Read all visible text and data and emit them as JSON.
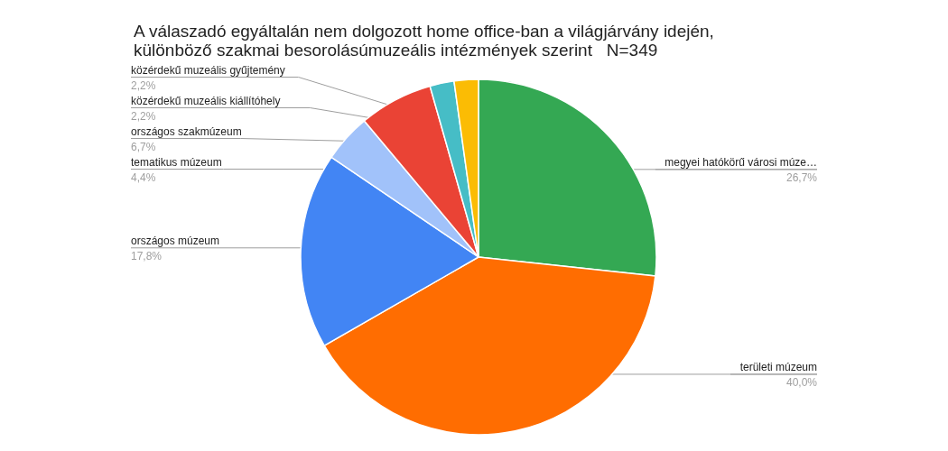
{
  "chart_data": {
    "type": "pie",
    "title": "A válaszadó egyáltalán nem dolgozott home office-ban a világjárvány idején,\nkülönböző szakmai besorolásúmuzeális intézmények szerint   N=349",
    "categories": [
      "megyei hatókörű városi múze…",
      "területi múzeum",
      "országos múzeum",
      "tematikus múzeum",
      "országos szakmúzeum",
      "közérdekű muzeális kiállítóhely",
      "közérdekű muzeális gyűjtemény"
    ],
    "values": [
      26.7,
      40.0,
      17.8,
      4.4,
      6.7,
      2.2,
      2.2
    ],
    "colors": [
      "#34a853",
      "#ff6d01",
      "#4285f4",
      "#a1c2fa",
      "#ea4335",
      "#46bdc6",
      "#fbbc04"
    ],
    "value_labels": [
      "26,7%",
      "40,0%",
      "17,8%",
      "4,4%",
      "6,7%",
      "2,2%",
      "2,2%"
    ],
    "legend": false
  }
}
